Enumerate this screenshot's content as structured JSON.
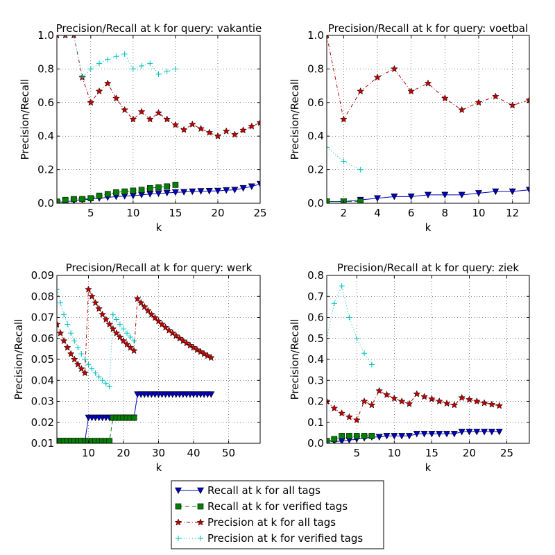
{
  "chart_data": [
    {
      "type": "line",
      "title": "Precision/Recall at k for query: vakantie",
      "xlabel": "k",
      "ylabel": "Precision/Recall",
      "xlim": [
        1,
        25
      ],
      "ylim": [
        0.0,
        1.0
      ],
      "xticks": [
        5,
        10,
        15,
        20,
        25
      ],
      "xtick_labels": [
        "5",
        "10",
        "15",
        "20",
        "25"
      ],
      "yticks": [
        0.0,
        0.2,
        0.4,
        0.6,
        0.8,
        1.0
      ],
      "ytick_labels": [
        "0.0",
        "0.2",
        "0.4",
        "0.6",
        "0.8",
        "1.0"
      ],
      "grid": true,
      "series": [
        {
          "name": "Recall at k for all tags",
          "x": [
            1,
            2,
            3,
            4,
            5,
            6,
            7,
            8,
            9,
            10,
            11,
            12,
            13,
            14,
            15,
            16,
            17,
            18,
            19,
            20,
            21,
            22,
            23,
            24,
            25
          ],
          "values": [
            0.005,
            0.01,
            0.015,
            0.02,
            0.025,
            0.03,
            0.035,
            0.04,
            0.043,
            0.045,
            0.05,
            0.055,
            0.058,
            0.062,
            0.065,
            0.067,
            0.07,
            0.072,
            0.073,
            0.074,
            0.078,
            0.08,
            0.09,
            0.1,
            0.115
          ]
        },
        {
          "name": "Recall at k for verified tags",
          "x": [
            1,
            2,
            3,
            4,
            5,
            6,
            7,
            8,
            9,
            10,
            11,
            12,
            13,
            14,
            15
          ],
          "values": [
            0.01,
            0.02,
            0.025,
            0.025,
            0.03,
            0.045,
            0.055,
            0.065,
            0.07,
            0.075,
            0.08,
            0.09,
            0.095,
            0.1,
            0.11
          ]
        },
        {
          "name": "Precision at k for all tags",
          "x": [
            1,
            2,
            3,
            4,
            5,
            6,
            7,
            8,
            9,
            10,
            11,
            12,
            13,
            14,
            15,
            16,
            17,
            18,
            19,
            20,
            21,
            22,
            23,
            24,
            25
          ],
          "values": [
            1.0,
            1.0,
            1.0,
            0.75,
            0.6,
            0.667,
            0.714,
            0.625,
            0.556,
            0.5,
            0.545,
            0.5,
            0.538,
            0.5,
            0.467,
            0.4375,
            0.47,
            0.444,
            0.421,
            0.4,
            0.429,
            0.409,
            0.435,
            0.458,
            0.48
          ]
        },
        {
          "name": "Precision at k for verified tags",
          "x": [
            1,
            2,
            3,
            4,
            5,
            6,
            7,
            8,
            9,
            10,
            11,
            12,
            13,
            14,
            15
          ],
          "values": [
            1.0,
            1.0,
            1.0,
            0.75,
            0.8,
            0.833,
            0.857,
            0.875,
            0.889,
            0.8,
            0.818,
            0.833,
            0.769,
            0.786,
            0.8
          ]
        }
      ]
    },
    {
      "type": "line",
      "title": "Precision/Recall at k for query: voetbal",
      "xlabel": "k",
      "ylabel": "Precision/Recall",
      "xlim": [
        1,
        13
      ],
      "ylim": [
        0.0,
        1.0
      ],
      "xticks": [
        2,
        4,
        6,
        8,
        10,
        12
      ],
      "xtick_labels": [
        "2",
        "4",
        "6",
        "8",
        "10",
        "12"
      ],
      "yticks": [
        0.0,
        0.2,
        0.4,
        0.6,
        0.8,
        1.0
      ],
      "ytick_labels": [
        "0.0",
        "0.2",
        "0.4",
        "0.6",
        "0.8",
        "1.0"
      ],
      "grid": true,
      "series": [
        {
          "name": "Recall at k for all tags",
          "x": [
            1,
            2,
            3,
            4,
            5,
            6,
            7,
            8,
            9,
            10,
            11,
            12,
            13
          ],
          "values": [
            0.01,
            0.01,
            0.02,
            0.03,
            0.04,
            0.04,
            0.05,
            0.05,
            0.05,
            0.06,
            0.07,
            0.07,
            0.08
          ]
        },
        {
          "name": "Recall at k for verified tags",
          "x": [
            1,
            2,
            3
          ],
          "values": [
            0.01,
            0.01,
            0.01
          ]
        },
        {
          "name": "Precision at k for all tags",
          "x": [
            1,
            2,
            3,
            4,
            5,
            6,
            7,
            8,
            9,
            10,
            11,
            12,
            13
          ],
          "values": [
            1.0,
            0.5,
            0.667,
            0.75,
            0.8,
            0.667,
            0.714,
            0.625,
            0.556,
            0.6,
            0.636,
            0.583,
            0.615
          ]
        },
        {
          "name": "Precision at k for verified tags",
          "x": [
            1,
            2,
            3
          ],
          "values": [
            0.333,
            0.25,
            0.2
          ]
        }
      ]
    },
    {
      "type": "line",
      "title": "Precision/Recall at k for query: werk",
      "xlabel": "k",
      "ylabel": "Precision/Recall",
      "xlim": [
        1,
        59
      ],
      "ylim": [
        0.01,
        0.09
      ],
      "xticks": [
        10,
        20,
        30,
        40,
        50
      ],
      "xtick_labels": [
        "10",
        "20",
        "30",
        "40",
        "50"
      ],
      "yticks": [
        0.01,
        0.02,
        0.03,
        0.04,
        0.05,
        0.06,
        0.07,
        0.08,
        0.09
      ],
      "ytick_labels": [
        "0.01",
        "0.02",
        "0.03",
        "0.04",
        "0.05",
        "0.06",
        "0.07",
        "0.08",
        "0.09"
      ],
      "grid": true,
      "series": [
        {
          "name": "Recall at k for all tags",
          "x": [
            1,
            2,
            3,
            4,
            5,
            6,
            7,
            8,
            9,
            10,
            11,
            12,
            13,
            14,
            15,
            16,
            17,
            18,
            19,
            20,
            21,
            22,
            23,
            24,
            25,
            26,
            27,
            28,
            29,
            30,
            31,
            32,
            33,
            34,
            35,
            36,
            37,
            38,
            39,
            40,
            41,
            42,
            43,
            44,
            45
          ],
          "values": [
            0.0111,
            0.0111,
            0.0111,
            0.0111,
            0.0111,
            0.0111,
            0.0111,
            0.0111,
            0.0111,
            0.0222,
            0.0222,
            0.0222,
            0.0222,
            0.0222,
            0.0222,
            0.0222,
            0.0222,
            0.0222,
            0.0222,
            0.0222,
            0.0222,
            0.0222,
            0.0222,
            0.0333,
            0.0333,
            0.0333,
            0.0333,
            0.0333,
            0.0333,
            0.0333,
            0.0333,
            0.0333,
            0.0333,
            0.0333,
            0.0333,
            0.0333,
            0.0333,
            0.0333,
            0.0333,
            0.0333,
            0.0333,
            0.0333,
            0.0333,
            0.0333,
            0.0333
          ]
        },
        {
          "name": "Recall at k for verified tags",
          "x": [
            1,
            2,
            3,
            4,
            5,
            6,
            7,
            8,
            9,
            10,
            11,
            12,
            13,
            14,
            15,
            16,
            17,
            18,
            19,
            20,
            21,
            22,
            23
          ],
          "values": [
            0.0111,
            0.0111,
            0.0111,
            0.0111,
            0.0111,
            0.0111,
            0.0111,
            0.0111,
            0.0111,
            0.0111,
            0.0111,
            0.0111,
            0.0111,
            0.0111,
            0.0111,
            0.0111,
            0.0222,
            0.0222,
            0.0222,
            0.0222,
            0.0222,
            0.0222,
            0.0222
          ]
        },
        {
          "name": "Precision at k for all tags",
          "x": [
            1,
            2,
            3,
            4,
            5,
            6,
            7,
            8,
            9,
            10,
            11,
            12,
            13,
            14,
            15,
            16,
            17,
            18,
            19,
            20,
            21,
            22,
            23,
            24,
            25,
            26,
            27,
            28,
            29,
            30,
            31,
            32,
            33,
            34,
            35,
            36,
            37,
            38,
            39,
            40,
            41,
            42,
            43,
            44,
            45
          ],
          "values": [
            0.0667,
            0.0625,
            0.0588,
            0.0556,
            0.0526,
            0.05,
            0.0476,
            0.0455,
            0.0435,
            0.0833,
            0.08,
            0.0769,
            0.0741,
            0.0714,
            0.069,
            0.0667,
            0.0645,
            0.0625,
            0.0606,
            0.0588,
            0.0571,
            0.0556,
            0.0541,
            0.0789,
            0.0769,
            0.075,
            0.0732,
            0.0714,
            0.0698,
            0.0682,
            0.0667,
            0.0652,
            0.0638,
            0.0625,
            0.0612,
            0.06,
            0.0588,
            0.0577,
            0.0566,
            0.0556,
            0.0545,
            0.0536,
            0.0526,
            0.0517,
            0.0508
          ]
        },
        {
          "name": "Precision at k for verified tags",
          "x": [
            1,
            2,
            3,
            4,
            5,
            6,
            7,
            8,
            9,
            10,
            11,
            12,
            13,
            14,
            15,
            16,
            17,
            18,
            19,
            20,
            21,
            22,
            23
          ],
          "values": [
            0.0833,
            0.0769,
            0.0714,
            0.0667,
            0.0625,
            0.0588,
            0.0556,
            0.0526,
            0.05,
            0.0476,
            0.0455,
            0.0435,
            0.0417,
            0.04,
            0.0385,
            0.037,
            0.0714,
            0.069,
            0.0667,
            0.0645,
            0.0625,
            0.0606,
            0.0588
          ]
        }
      ]
    },
    {
      "type": "line",
      "title": "Precision/Recall at k for query: ziek",
      "xlabel": "k",
      "ylabel": "Precision/Recall",
      "xlim": [
        1,
        28
      ],
      "ylim": [
        0.0,
        0.8
      ],
      "xticks": [
        5,
        10,
        15,
        20,
        25
      ],
      "xtick_labels": [
        "5",
        "10",
        "15",
        "20",
        "25"
      ],
      "yticks": [
        0.0,
        0.1,
        0.2,
        0.3,
        0.4,
        0.5,
        0.6,
        0.7,
        0.8
      ],
      "ytick_labels": [
        "0.0",
        "0.1",
        "0.2",
        "0.3",
        "0.4",
        "0.5",
        "0.6",
        "0.7",
        "0.8"
      ],
      "grid": true,
      "series": [
        {
          "name": "Recall at k for all tags",
          "x": [
            1,
            2,
            3,
            4,
            5,
            6,
            7,
            8,
            9,
            10,
            11,
            12,
            13,
            14,
            15,
            16,
            17,
            18,
            19,
            20,
            21,
            22,
            23,
            24
          ],
          "values": [
            0.01,
            0.01,
            0.01,
            0.015,
            0.02,
            0.025,
            0.03,
            0.03,
            0.035,
            0.035,
            0.035,
            0.035,
            0.045,
            0.045,
            0.045,
            0.045,
            0.045,
            0.045,
            0.055,
            0.055,
            0.055,
            0.055,
            0.055,
            0.055
          ]
        },
        {
          "name": "Recall at k for verified tags",
          "x": [
            1,
            2,
            3,
            4,
            5,
            6,
            7
          ],
          "values": [
            0.01,
            0.02,
            0.035,
            0.035,
            0.035,
            0.035,
            0.035
          ]
        },
        {
          "name": "Precision at k for all tags",
          "x": [
            1,
            2,
            3,
            4,
            5,
            6,
            7,
            8,
            9,
            10,
            11,
            12,
            13,
            14,
            15,
            16,
            17,
            18,
            19,
            20,
            21,
            22,
            23,
            24
          ],
          "values": [
            0.2,
            0.167,
            0.143,
            0.125,
            0.111,
            0.2,
            0.182,
            0.25,
            0.231,
            0.214,
            0.2,
            0.188,
            0.235,
            0.222,
            0.211,
            0.2,
            0.19,
            0.182,
            0.217,
            0.208,
            0.2,
            0.192,
            0.185,
            0.179
          ]
        },
        {
          "name": "Precision at k for verified tags",
          "x": [
            1,
            2,
            3,
            4,
            5,
            6,
            7
          ],
          "values": [
            0.5,
            0.667,
            0.75,
            0.6,
            0.5,
            0.429,
            0.375
          ]
        }
      ]
    }
  ],
  "legend": {
    "placement": "bottom-center",
    "entries": [
      {
        "label": "Recall at k for all tags",
        "color": "#0000bf",
        "marker": "triangle-down",
        "line": "solid"
      },
      {
        "label": "Recall at k for verified tags",
        "color": "#007f00",
        "marker": "square",
        "line": "dashed"
      },
      {
        "label": "Precision at k for all tags",
        "color": "#bf0000",
        "marker": "star",
        "line": "dashdot"
      },
      {
        "label": "Precision at k for verified tags",
        "color": "#00bfbf",
        "marker": "plus",
        "line": "dotted"
      }
    ]
  },
  "colors": {
    "recall_all": "#0000bf",
    "recall_verified": "#007f00",
    "precision_all": "#bf0000",
    "precision_verified": "#00bfbf"
  }
}
